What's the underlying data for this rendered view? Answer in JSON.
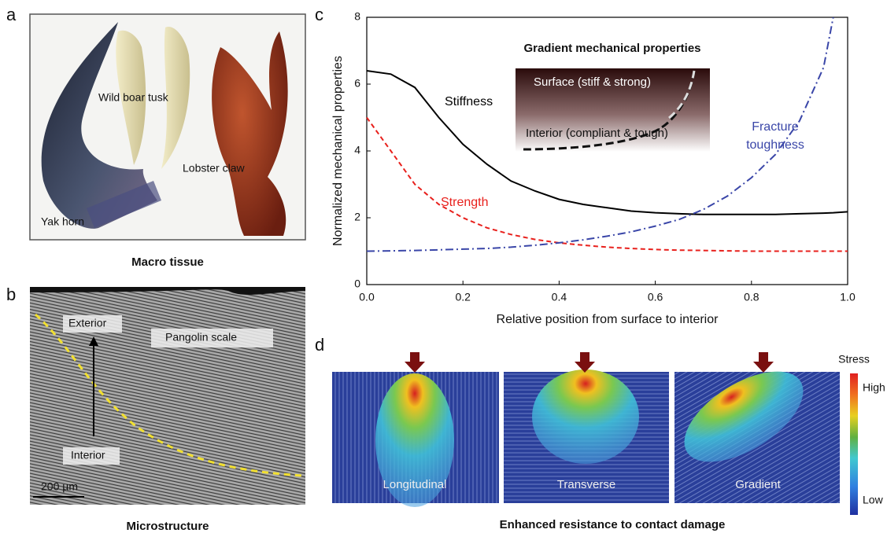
{
  "panel_labels": [
    "a",
    "b",
    "c",
    "d"
  ],
  "panel_a": {
    "labels": [
      "Wild boar tusk",
      "Lobster claw",
      "Yak horn"
    ],
    "caption": "Macro tissue"
  },
  "panel_b": {
    "labels": [
      "Exterior",
      "Pangolin scale",
      "Interior",
      "200 µm"
    ],
    "caption": "Microstructure"
  },
  "chart_data": {
    "type": "line",
    "xlabel": "Relative position from surface to interior",
    "ylabel": "Normalized mechanical properties",
    "annotations": [
      "Gradient mechanical properties",
      "Surface (stiff & strong)",
      "Interior (compliant & tough)"
    ],
    "x": [
      0,
      0.05,
      0.1,
      0.15,
      0.2,
      0.25,
      0.3,
      0.35,
      0.4,
      0.45,
      0.5,
      0.55,
      0.6,
      0.65,
      0.7,
      0.75,
      0.8,
      0.85,
      0.9,
      0.95,
      0.97,
      1.0
    ],
    "series": [
      {
        "name": "Stiffness",
        "color": "#000000",
        "style": "solid",
        "values": [
          6.4,
          6.3,
          5.9,
          5.0,
          4.2,
          3.6,
          3.1,
          2.8,
          2.55,
          2.4,
          2.3,
          2.2,
          2.15,
          2.12,
          2.1,
          2.1,
          2.1,
          2.1,
          2.12,
          2.14,
          2.15,
          2.18
        ]
      },
      {
        "name": "Strength",
        "color": "#e8201c",
        "style": "dashed",
        "values": [
          5.0,
          4.0,
          3.0,
          2.4,
          2.0,
          1.7,
          1.5,
          1.35,
          1.25,
          1.18,
          1.12,
          1.08,
          1.05,
          1.03,
          1.02,
          1.01,
          1.0,
          1.0,
          1.0,
          1.0,
          1.0,
          1.0
        ]
      },
      {
        "name": "Fracture toughness",
        "color": "#3a46a8",
        "style": "dashdot",
        "values": [
          1.0,
          1.01,
          1.02,
          1.04,
          1.06,
          1.08,
          1.12,
          1.18,
          1.25,
          1.34,
          1.45,
          1.58,
          1.75,
          1.95,
          2.25,
          2.65,
          3.2,
          3.9,
          4.9,
          6.5,
          8.0,
          null
        ]
      }
    ],
    "xlim": [
      0,
      1.0
    ],
    "ylim": [
      0,
      8
    ],
    "xticks": [
      {
        "value": 0,
        "label": "0.0"
      },
      0.2,
      0.4,
      0.6,
      0.8,
      {
        "value": 1.0,
        "label": "1.0"
      }
    ],
    "yticks": [
      0,
      2,
      4,
      6,
      8
    ]
  },
  "panel_d": {
    "labels": [
      "Longitudinal",
      "Transverse",
      "Gradient"
    ],
    "colorbar": [
      "Stress",
      "High",
      "Low"
    ],
    "caption": "Enhanced resistance to contact damage"
  }
}
